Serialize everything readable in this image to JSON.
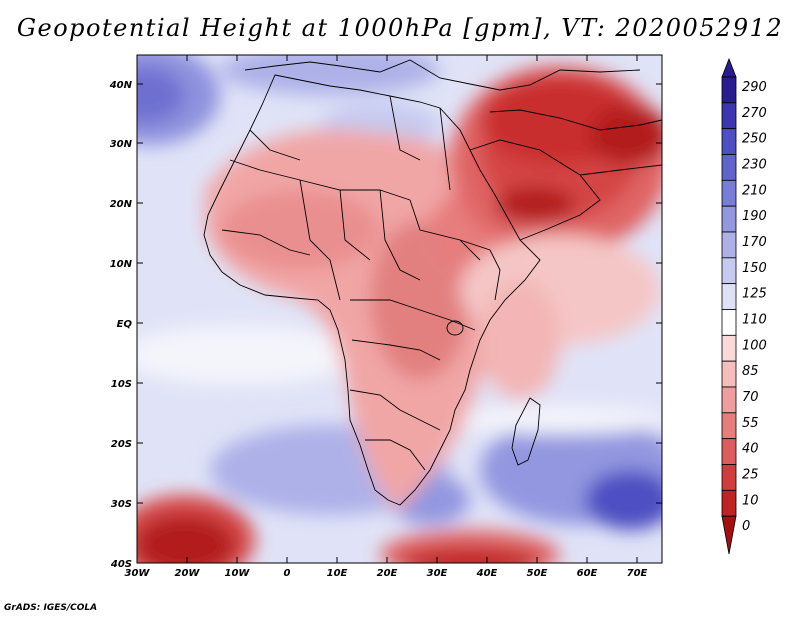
{
  "title": "Geopotential Height at 1000hPa [gpm], VT: 2020052912",
  "credit": "GrADS: IGES/COLA",
  "lon_labels": [
    "30W",
    "20W",
    "10W",
    "0",
    "10E",
    "20E",
    "30E",
    "40E",
    "50E",
    "60E",
    "70E"
  ],
  "lat_labels": [
    "40N",
    "30N",
    "20N",
    "10N",
    "EQ",
    "10S",
    "20S",
    "30S",
    "40S"
  ],
  "colorbar": {
    "labels": [
      "290",
      "270",
      "250",
      "230",
      "210",
      "190",
      "170",
      "150",
      "125",
      "110",
      "100",
      "85",
      "70",
      "55",
      "40",
      "25",
      "10",
      "0"
    ],
    "colors": [
      "#2a1c8f",
      "#3b36b0",
      "#4d4fc2",
      "#6264cd",
      "#7a7dd8",
      "#9397e0",
      "#adb1e8",
      "#c6caf0",
      "#dfe2f7",
      "#ffffff",
      "#fbd9d9",
      "#f7bdbd",
      "#ef9d9d",
      "#e77d7d",
      "#dd5d5d",
      "#d13c3c",
      "#c02222",
      "#a50f0f"
    ]
  }
}
